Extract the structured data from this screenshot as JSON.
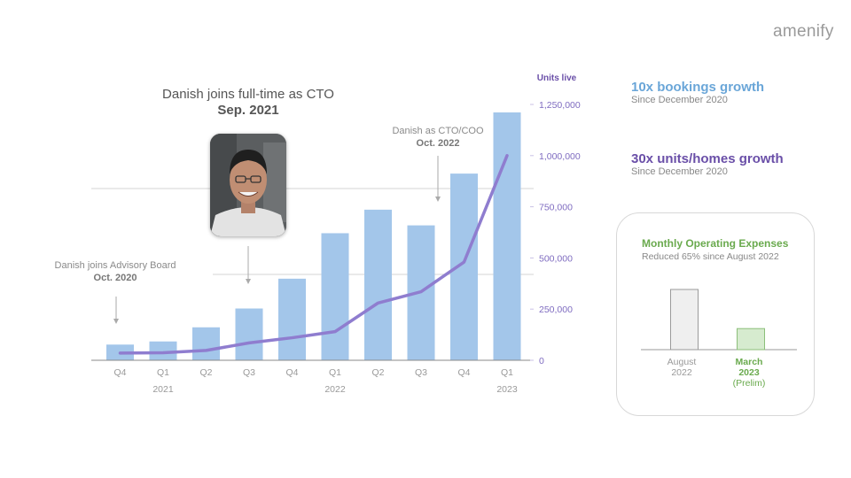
{
  "brand": {
    "logo_text": "amenify"
  },
  "annotations": {
    "cto_title": "Danish joins full-time as CTO",
    "cto_date": "Sep. 2021",
    "advisory_title": "Danish joins Advisory Board",
    "advisory_date": "Oct. 2020",
    "coo_title": "Danish as CTO/COO",
    "coo_date": "Oct. 2022"
  },
  "stats": [
    {
      "headline": "10x bookings growth",
      "sub": "Since December 2020",
      "color": "#6aa6d8"
    },
    {
      "headline": "30x units/homes growth",
      "sub": "Since December 2020",
      "color": "#6a4fa8"
    }
  ],
  "colors": {
    "bar": "#a3c6ea",
    "line": "#8f7dcf",
    "axis_text": "#7f6cc0",
    "opex_title": "#6aaa4e"
  },
  "chart_data": [
    {
      "type": "bar",
      "categories": [
        "Q4",
        "Q1",
        "Q2",
        "Q3",
        "Q4",
        "Q1",
        "Q2",
        "Q3",
        "Q4",
        "Q1"
      ],
      "year_labels": [
        {
          "label": "2021",
          "index": 1
        },
        {
          "label": "2022",
          "index": 5
        },
        {
          "label": "2023",
          "index": 9
        }
      ],
      "series": [
        {
          "values": [
            1,
            1.2,
            2.1,
            3.3,
            5.2,
            8.1,
            9.6,
            8.6,
            11.9,
            15.8
          ]
        },
        {
          "type": "line",
          "values": [
            35000,
            37000,
            48000,
            85000,
            110000,
            140000,
            280000,
            335000,
            480000,
            1000000
          ]
        }
      ],
      "y2label": "Units live",
      "y2ticks": [
        "1,250,000",
        "1,000,000",
        "750,000",
        "500,000",
        "250,000",
        "0"
      ],
      "y2lim": [
        0,
        1250000
      ]
    },
    {
      "type": "bar",
      "title": "Monthly Operating Expenses",
      "subtitle": "Reduced 65% since August 2022",
      "categories": [
        {
          "line1": "August",
          "line2": "2022",
          "line3": ""
        },
        {
          "line1": "March",
          "line2": "2023",
          "line3": "(Prelim)"
        }
      ],
      "values": [
        100,
        35
      ]
    }
  ]
}
